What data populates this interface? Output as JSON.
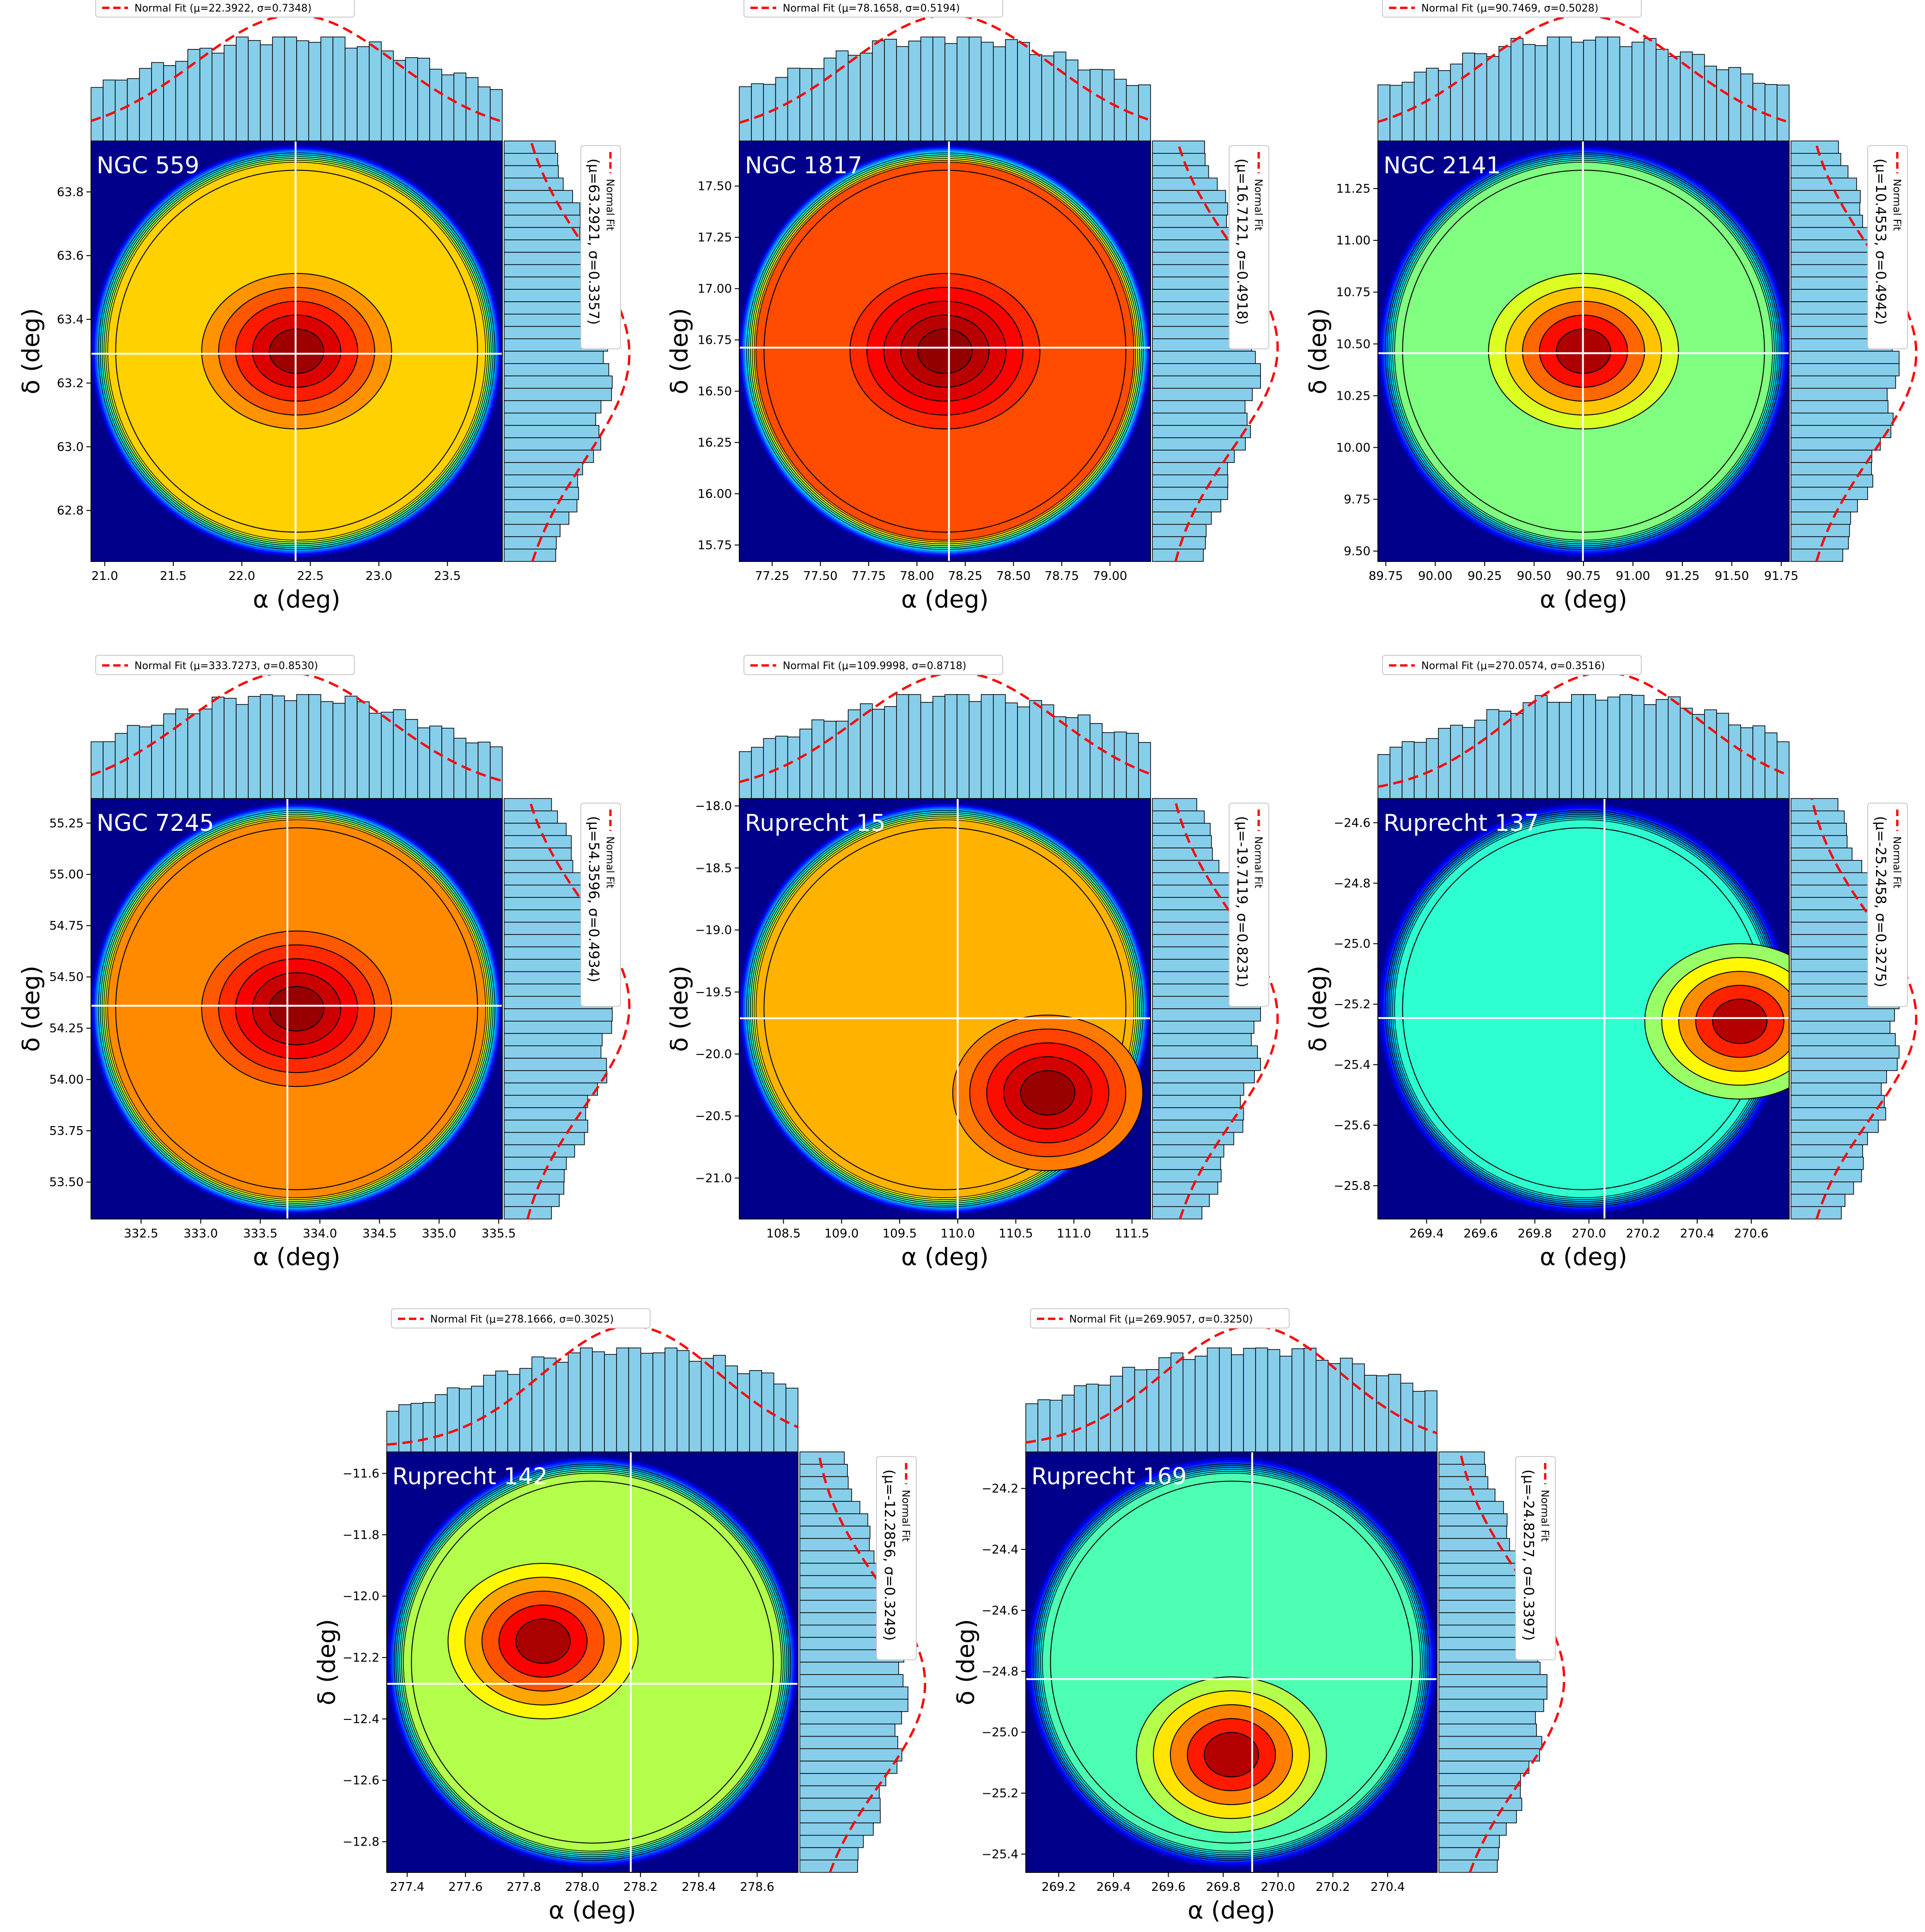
{
  "figure": {
    "xlabel": "α (deg)",
    "ylabel": "δ (deg)",
    "legend_label": "Normal Fit",
    "colors": {
      "histogram_fill": "#87ceeb",
      "histogram_edge": "#000000",
      "fit_line": "#ff0000",
      "crosshair": "#ffffff",
      "background": "#00008b"
    }
  },
  "chart_data": [
    {
      "type": "heatmap",
      "name": "NGC 559",
      "density_hotspot": "center",
      "x_range": [
        20.9,
        23.9
      ],
      "y_range": [
        62.64,
        63.96
      ],
      "x_ticks": [
        "21.0",
        "21.5",
        "22.0",
        "22.5",
        "23.0",
        "23.5"
      ],
      "y_ticks": [
        "62.8",
        "63.0",
        "63.2",
        "63.4",
        "63.6",
        "63.8"
      ],
      "x_ticks_v": [
        21.0,
        21.5,
        22.0,
        22.5,
        23.0,
        23.5
      ],
      "y_ticks_v": [
        62.8,
        63.0,
        63.2,
        63.4,
        63.6,
        63.8
      ],
      "center": [
        22.3922,
        63.2921
      ],
      "fit_x": {
        "mu": 22.3922,
        "sigma": 0.7348,
        "label": "Normal Fit (μ=22.3922, σ=0.7348)"
      },
      "fit_y": {
        "mu": 63.2921,
        "sigma": 0.3357,
        "label": "(μ=63.2921, σ=0.3357)"
      }
    },
    {
      "type": "heatmap",
      "name": "NGC 1817",
      "density_hotspot": "center",
      "x_range": [
        77.08,
        79.21
      ],
      "y_range": [
        15.67,
        17.72
      ],
      "x_ticks": [
        "77.25",
        "77.50",
        "77.75",
        "78.00",
        "78.25",
        "78.50",
        "78.75",
        "79.00"
      ],
      "y_ticks": [
        "15.75",
        "16.00",
        "16.25",
        "16.50",
        "16.75",
        "17.00",
        "17.25",
        "17.50"
      ],
      "x_ticks_v": [
        77.25,
        77.5,
        77.75,
        78.0,
        78.25,
        78.5,
        78.75,
        79.0
      ],
      "y_ticks_v": [
        15.75,
        16.0,
        16.25,
        16.5,
        16.75,
        17.0,
        17.25,
        17.5
      ],
      "center": [
        78.1658,
        16.7121
      ],
      "fit_x": {
        "mu": 78.1658,
        "sigma": 0.5194,
        "label": "Normal Fit (μ=78.1658, σ=0.5194)"
      },
      "fit_y": {
        "mu": 16.7121,
        "sigma": 0.4918,
        "label": "(μ=16.7121, σ=0.4918)"
      }
    },
    {
      "type": "heatmap",
      "name": "NGC 2141",
      "density_hotspot": "center",
      "x_range": [
        89.71,
        91.79
      ],
      "y_range": [
        9.45,
        11.48
      ],
      "x_ticks": [
        "89.75",
        "90.00",
        "90.25",
        "90.50",
        "90.75",
        "91.00",
        "91.25",
        "91.50",
        "91.75"
      ],
      "y_ticks": [
        "9.50",
        "9.75",
        "10.00",
        "10.25",
        "10.50",
        "10.75",
        "11.00",
        "11.25"
      ],
      "x_ticks_v": [
        89.75,
        90.0,
        90.25,
        90.5,
        90.75,
        91.0,
        91.25,
        91.5,
        91.75
      ],
      "y_ticks_v": [
        9.5,
        9.75,
        10.0,
        10.25,
        10.5,
        10.75,
        11.0,
        11.25
      ],
      "center": [
        90.7469,
        10.4553
      ],
      "fit_x": {
        "mu": 90.7469,
        "sigma": 0.5028,
        "label": "Normal Fit (μ=90.7469, σ=0.5028)"
      },
      "fit_y": {
        "mu": 10.4553,
        "sigma": 0.4942,
        "label": "(μ=10.4553, σ=0.4942)"
      }
    },
    {
      "type": "heatmap",
      "name": "NGC 7245",
      "density_hotspot": "center",
      "x_range": [
        332.08,
        335.53
      ],
      "y_range": [
        53.32,
        55.37
      ],
      "x_ticks": [
        "332.5",
        "333.0",
        "333.5",
        "334.0",
        "334.5",
        "335.0",
        "335.5"
      ],
      "y_ticks": [
        "53.50",
        "53.75",
        "54.00",
        "54.25",
        "54.50",
        "54.75",
        "55.00",
        "55.25"
      ],
      "x_ticks_v": [
        332.5,
        333.0,
        333.5,
        334.0,
        334.5,
        335.0,
        335.5
      ],
      "y_ticks_v": [
        53.5,
        53.75,
        54.0,
        54.25,
        54.5,
        54.75,
        55.0,
        55.25
      ],
      "center": [
        333.7273,
        54.3596
      ],
      "fit_x": {
        "mu": 333.7273,
        "sigma": 0.853,
        "label": "Normal Fit (μ=333.7273, σ=0.8530)"
      },
      "fit_y": {
        "mu": 54.3596,
        "sigma": 0.4934,
        "label": "(μ=54.3596, σ=0.4934)"
      }
    },
    {
      "type": "heatmap",
      "name": "Ruprecht 15",
      "density_hotspot": "lower-right",
      "x_range": [
        108.12,
        111.66
      ],
      "y_range": [
        -21.33,
        -17.94
      ],
      "x_ticks": [
        "108.5",
        "109.0",
        "109.5",
        "110.0",
        "110.5",
        "111.0",
        "111.5"
      ],
      "y_ticks": [
        "−18.0",
        "−18.5",
        "−19.0",
        "−19.5",
        "−20.0",
        "−20.5",
        "−21.0"
      ],
      "x_ticks_v": [
        108.5,
        109.0,
        109.5,
        110.0,
        110.5,
        111.0,
        111.5
      ],
      "y_ticks_v": [
        -18.0,
        -18.5,
        -19.0,
        -19.5,
        -20.0,
        -20.5,
        -21.0
      ],
      "center": [
        109.9998,
        -19.7119
      ],
      "fit_x": {
        "mu": 109.9998,
        "sigma": 0.8718,
        "label": "Normal Fit (μ=109.9998, σ=0.8718)"
      },
      "fit_y": {
        "mu": -19.7119,
        "sigma": 0.8231,
        "label": "(μ=-19.7119, σ=0.8231)"
      }
    },
    {
      "type": "heatmap",
      "name": "Ruprecht 137",
      "density_hotspot": "right",
      "x_range": [
        269.22,
        270.74
      ],
      "y_range": [
        -25.91,
        -24.52
      ],
      "x_ticks": [
        "269.4",
        "269.6",
        "269.8",
        "270.0",
        "270.2",
        "270.4",
        "270.6"
      ],
      "y_ticks": [
        "−24.6",
        "−24.8",
        "−25.0",
        "−25.2",
        "−25.4",
        "−25.6",
        "−25.8"
      ],
      "x_ticks_v": [
        269.4,
        269.6,
        269.8,
        270.0,
        270.2,
        270.4,
        270.6
      ],
      "y_ticks_v": [
        -24.6,
        -24.8,
        -25.0,
        -25.2,
        -25.4,
        -25.6,
        -25.8
      ],
      "center": [
        270.0574,
        -25.2458
      ],
      "fit_x": {
        "mu": 270.0574,
        "sigma": 0.3516,
        "label": "Normal Fit (μ=270.0574, σ=0.3516)"
      },
      "fit_y": {
        "mu": -25.2458,
        "sigma": 0.3275,
        "label": "(μ=-25.2458, σ=0.3275)"
      }
    },
    {
      "type": "heatmap",
      "name": "Ruprecht 142",
      "density_hotspot": "center-left",
      "x_range": [
        277.33,
        278.74
      ],
      "y_range": [
        -12.9,
        -11.53
      ],
      "x_ticks": [
        "277.4",
        "277.6",
        "277.8",
        "278.0",
        "278.2",
        "278.4",
        "278.6"
      ],
      "y_ticks": [
        "−11.6",
        "−11.8",
        "−12.0",
        "−12.2",
        "−12.4",
        "−12.6",
        "−12.8"
      ],
      "x_ticks_v": [
        277.4,
        277.6,
        277.8,
        278.0,
        278.2,
        278.4,
        278.6
      ],
      "y_ticks_v": [
        -11.6,
        -11.8,
        -12.0,
        -12.2,
        -12.4,
        -12.6,
        -12.8
      ],
      "center": [
        278.1666,
        -12.2856
      ],
      "fit_x": {
        "mu": 278.1666,
        "sigma": 0.3025,
        "label": "Normal Fit (μ=278.1666, σ=0.3025)"
      },
      "fit_y": {
        "mu": -12.2856,
        "sigma": 0.3249,
        "label": "(μ=-12.2856, σ=0.3249)"
      }
    },
    {
      "type": "heatmap",
      "name": "Ruprecht 169",
      "density_hotspot": "lower-center",
      "x_range": [
        269.08,
        270.58
      ],
      "y_range": [
        -25.46,
        -24.08
      ],
      "x_ticks": [
        "269.2",
        "269.4",
        "269.6",
        "269.8",
        "270.0",
        "270.2",
        "270.4"
      ],
      "y_ticks": [
        "−24.2",
        "−24.4",
        "−24.6",
        "−24.8",
        "−25.0",
        "−25.2",
        "−25.4"
      ],
      "x_ticks_v": [
        269.2,
        269.4,
        269.6,
        269.8,
        270.0,
        270.2,
        270.4
      ],
      "y_ticks_v": [
        -24.2,
        -24.4,
        -24.6,
        -24.8,
        -25.0,
        -25.2,
        -25.4
      ],
      "center": [
        269.9057,
        -24.8257
      ],
      "fit_x": {
        "mu": 269.9057,
        "sigma": 0.325,
        "label": "Normal Fit (μ=269.9057, σ=0.3250)"
      },
      "fit_y": {
        "mu": -24.8257,
        "sigma": 0.3397,
        "label": "(μ=-24.8257, σ=0.3397)"
      }
    }
  ]
}
